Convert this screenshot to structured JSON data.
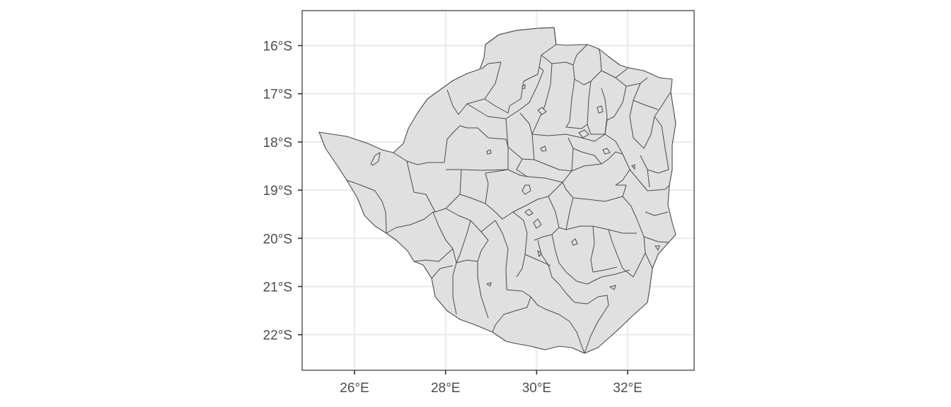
{
  "map": {
    "type": "choropleth-outline",
    "region": "districts",
    "fill_color": "#e0e0e0",
    "border_color": "#4a4a4a",
    "grid_color": "#ebebeb",
    "panel_border_color": "#333333",
    "grid": true,
    "x_axis": {
      "range": [
        24.9,
        33.4
      ],
      "ticks": [
        {
          "value": 26,
          "label": "26°E"
        },
        {
          "value": 28,
          "label": "28°E"
        },
        {
          "value": 30,
          "label": "30°E"
        },
        {
          "value": 32,
          "label": "32°E"
        }
      ]
    },
    "y_axis": {
      "range": [
        -22.8,
        -15.3
      ],
      "ticks": [
        {
          "value": -16,
          "label": "16°S"
        },
        {
          "value": -17,
          "label": "17°S"
        },
        {
          "value": -18,
          "label": "18°S"
        },
        {
          "value": -19,
          "label": "19°S"
        },
        {
          "value": -20,
          "label": "20°S"
        },
        {
          "value": -21,
          "label": "21°S"
        },
        {
          "value": -22,
          "label": "22°S"
        }
      ]
    }
  }
}
